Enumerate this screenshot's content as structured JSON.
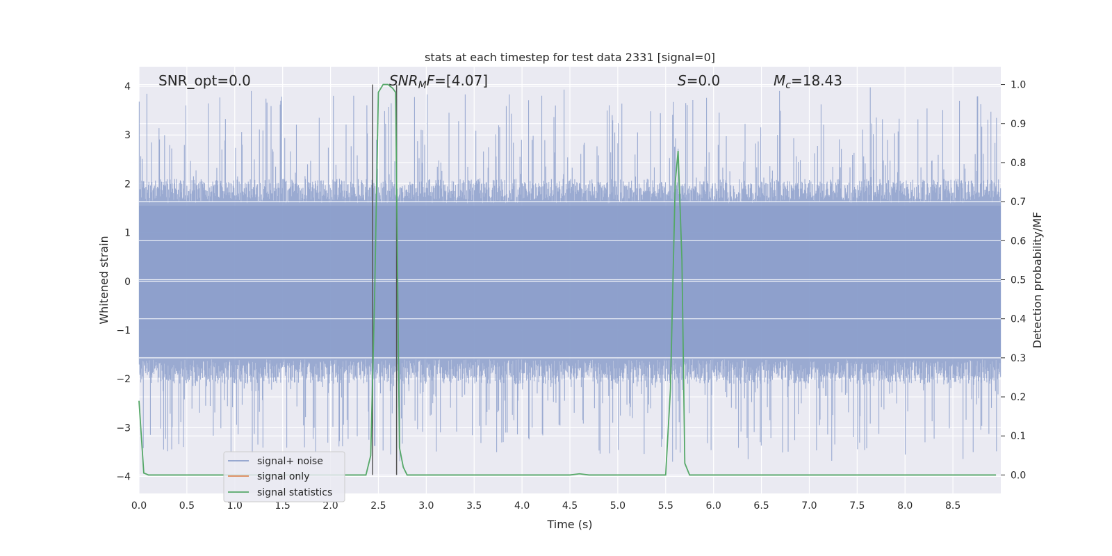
{
  "chart_data": {
    "type": "line",
    "title": "stats at each timestep for test data 2331 [signal=0]",
    "xlabel": "Time (s)",
    "ylabel_left": "Whitened strain",
    "ylabel_right": "Detection probability/MF",
    "xlim": [
      0.0,
      9.0
    ],
    "ylim_left": [
      -4.35,
      4.4
    ],
    "ylim_right": [
      -0.0473,
      1.0455
    ],
    "x_ticks": [
      0.0,
      0.5,
      1.0,
      1.5,
      2.0,
      2.5,
      3.0,
      3.5,
      4.0,
      4.5,
      5.0,
      5.5,
      6.0,
      6.5,
      7.0,
      7.5,
      8.0,
      8.5
    ],
    "x_tick_labels": [
      "0.0",
      "0.5",
      "1.0",
      "1.5",
      "2.0",
      "2.5",
      "3.0",
      "3.5",
      "4.0",
      "4.5",
      "5.0",
      "5.5",
      "6.0",
      "6.5",
      "7.0",
      "7.5",
      "8.0",
      "8.5"
    ],
    "y_left_ticks": [
      -4,
      -3,
      -2,
      -1,
      0,
      1,
      2,
      3,
      4
    ],
    "y_left_tick_labels": [
      "−4",
      "−3",
      "−2",
      "−1",
      "0",
      "1",
      "2",
      "3",
      "4"
    ],
    "y_right_ticks": [
      0.0,
      0.1,
      0.2,
      0.3,
      0.4,
      0.5,
      0.6,
      0.7,
      0.8,
      0.9,
      1.0
    ],
    "y_right_tick_labels": [
      "0.0",
      "0.1",
      "0.2",
      "0.3",
      "0.4",
      "0.5",
      "0.6",
      "0.7",
      "0.8",
      "0.9",
      "1.0"
    ],
    "grid": true,
    "legend_placement": "lower-left",
    "series": [
      {
        "name": "signal+ noise",
        "color": "#8c9fcb",
        "axis": "left",
        "style": "dense-noise",
        "envelope": {
          "core": [
            -1.6,
            1.6
          ],
          "peak_max": 4.0,
          "peak_min": -3.7
        }
      },
      {
        "name": "signal only",
        "color": "#dd8452",
        "axis": "left",
        "style": "line",
        "x": [
          0.0,
          9.0
        ],
        "y": [
          0.0,
          0.0
        ]
      },
      {
        "name": "signal statistics",
        "color": "#55a868",
        "axis": "right",
        "style": "line",
        "x": [
          0.0,
          0.05,
          0.1,
          0.15,
          0.5,
          1.0,
          1.5,
          2.0,
          2.37,
          2.42,
          2.46,
          2.5,
          2.55,
          2.6,
          2.65,
          2.68,
          2.72,
          2.76,
          2.8,
          3.0,
          3.5,
          4.0,
          4.5,
          4.6,
          4.7,
          5.0,
          5.5,
          5.55,
          5.6,
          5.63,
          5.67,
          5.7,
          5.75,
          6.0,
          6.5,
          7.0,
          7.5,
          8.0,
          8.5,
          8.95
        ],
        "y": [
          0.19,
          0.005,
          0.0,
          0.0,
          0.0,
          0.0,
          0.0,
          0.0,
          0.0,
          0.05,
          0.45,
          0.98,
          1.0,
          1.0,
          0.99,
          0.98,
          0.07,
          0.02,
          0.0,
          0.0,
          0.0,
          0.0,
          0.0,
          0.003,
          0.0,
          0.0,
          0.0,
          0.22,
          0.75,
          0.83,
          0.55,
          0.03,
          0.0,
          0.0,
          0.0,
          0.0,
          0.0,
          0.0,
          0.0,
          0.0
        ]
      }
    ],
    "vertical_lines": [
      2.44,
      2.69
    ],
    "annotations": [
      {
        "text": "SNR_opt=0.0",
        "x": 0.2,
        "italic": false
      },
      {
        "text": "SNR_MF=[4.07]",
        "x": 2.6,
        "italic": true,
        "math": "snr_mf"
      },
      {
        "text": "S=0.0",
        "x": 5.6,
        "italic": true,
        "math": "s"
      },
      {
        "text": "M_c=18.43",
        "x": 6.6,
        "italic": true,
        "math": "mc"
      }
    ]
  }
}
